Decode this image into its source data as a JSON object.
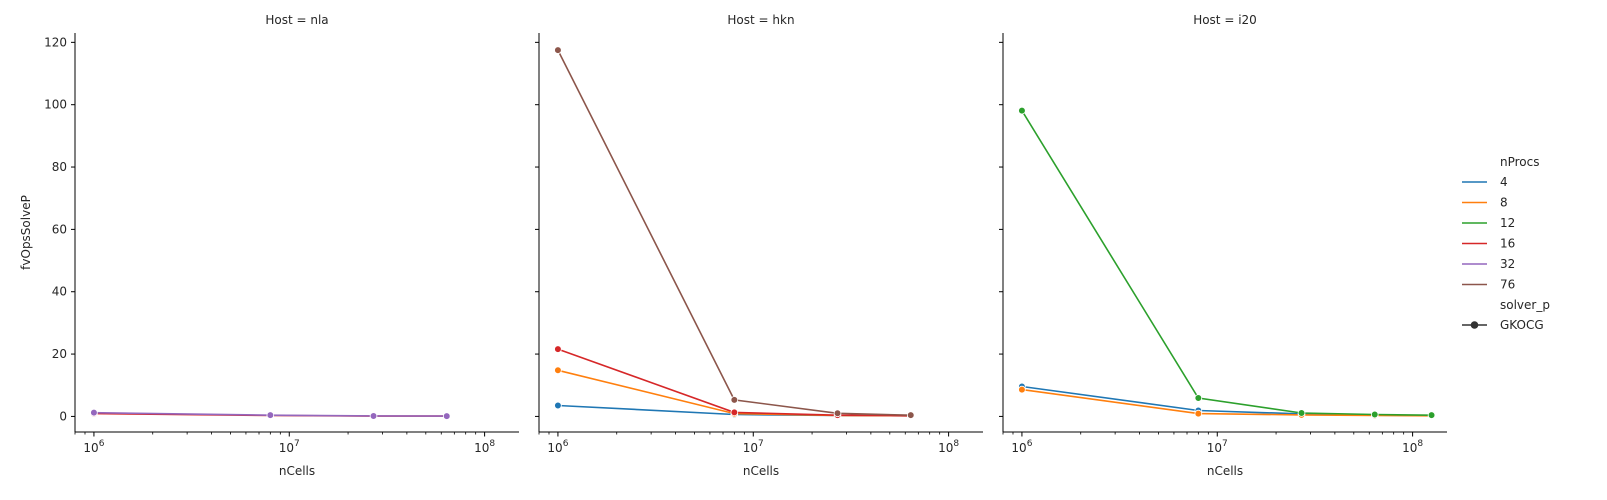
{
  "chart_data": {
    "type": "line",
    "xscale": "log",
    "xlabel": "nCells",
    "ylabel": "fvOpsSolveP",
    "xlim": [
      800000,
      150000000
    ],
    "ylim": [
      -5,
      123
    ],
    "x_ticks": [
      {
        "value": 1000000,
        "base": "10",
        "exp": "6"
      },
      {
        "value": 10000000,
        "base": "10",
        "exp": "7"
      },
      {
        "value": 100000000,
        "base": "10",
        "exp": "8"
      }
    ],
    "y_ticks": [
      "0",
      "20",
      "40",
      "60",
      "80",
      "100",
      "120"
    ],
    "legend": {
      "placement": "right",
      "hue_title": "nProcs",
      "hue_entries": [
        {
          "label": "4",
          "color": "#1f77b4"
        },
        {
          "label": "8",
          "color": "#ff7f0e"
        },
        {
          "label": "12",
          "color": "#2ca02c"
        },
        {
          "label": "16",
          "color": "#d62728"
        },
        {
          "label": "32",
          "color": "#9467bd"
        },
        {
          "label": "76",
          "color": "#8c564b"
        }
      ],
      "style_title": "solver_p",
      "style_entries": [
        {
          "label": "GKOCG",
          "color": "#333333"
        }
      ]
    },
    "panels": [
      {
        "title": "Host = nla",
        "series": [
          {
            "name": "16",
            "color": "#d62728",
            "x": [
              1000000,
              8000000,
              27000000,
              64000000
            ],
            "y": [
              0.9,
              0.3,
              0.1,
              0.1
            ]
          },
          {
            "name": "32",
            "color": "#9467bd",
            "x": [
              1000000,
              8000000,
              27000000,
              64000000
            ],
            "y": [
              1.2,
              0.4,
              0.15,
              0.1
            ]
          }
        ]
      },
      {
        "title": "Host = hkn",
        "series": [
          {
            "name": "4",
            "color": "#1f77b4",
            "x": [
              1000000,
              8000000,
              27000000,
              64000000
            ],
            "y": [
              3.5,
              0.6,
              0.3,
              0.2
            ]
          },
          {
            "name": "8",
            "color": "#ff7f0e",
            "x": [
              1000000,
              8000000,
              27000000,
              64000000
            ],
            "y": [
              14.8,
              0.9,
              0.3,
              0.2
            ]
          },
          {
            "name": "16",
            "color": "#d62728",
            "x": [
              1000000,
              8000000,
              27000000,
              64000000
            ],
            "y": [
              21.6,
              1.3,
              0.4,
              0.2
            ]
          },
          {
            "name": "76",
            "color": "#8c564b",
            "x": [
              1000000,
              8000000,
              27000000,
              64000000
            ],
            "y": [
              117.5,
              5.3,
              1.0,
              0.4
            ]
          }
        ]
      },
      {
        "title": "Host = i20",
        "series": [
          {
            "name": "4",
            "color": "#1f77b4",
            "x": [
              1000000,
              8000000,
              27000000,
              64000000,
              125000000
            ],
            "y": [
              9.6,
              1.9,
              0.8,
              0.4,
              0.3
            ]
          },
          {
            "name": "8",
            "color": "#ff7f0e",
            "x": [
              1000000,
              8000000,
              27000000,
              64000000,
              125000000
            ],
            "y": [
              8.6,
              0.9,
              0.5,
              0.3,
              0.2
            ]
          },
          {
            "name": "12",
            "color": "#2ca02c",
            "x": [
              1000000,
              8000000,
              27000000,
              64000000,
              125000000
            ],
            "y": [
              98.1,
              5.9,
              1.1,
              0.6,
              0.4
            ]
          }
        ]
      }
    ]
  }
}
